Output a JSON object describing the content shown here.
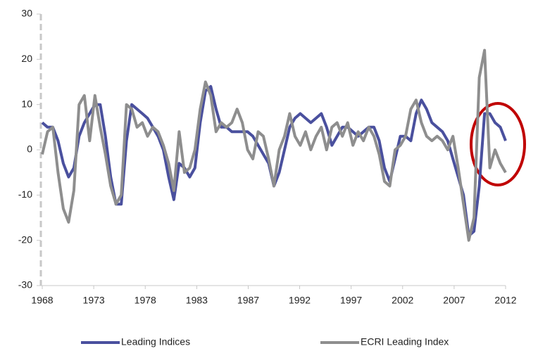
{
  "chart_data": {
    "type": "line",
    "x": [
      1968,
      1968.5,
      1969,
      1969.5,
      1970,
      1970.5,
      1971,
      1971.5,
      1972,
      1972.5,
      1973,
      1973.5,
      1974,
      1974.5,
      1975,
      1975.5,
      1976,
      1976.5,
      1977,
      1977.5,
      1978,
      1978.5,
      1979,
      1979.5,
      1980,
      1980.5,
      1981,
      1981.5,
      1982,
      1982.5,
      1983,
      1983.5,
      1984,
      1984.5,
      1985,
      1985.5,
      1986,
      1986.5,
      1987,
      1987.5,
      1988,
      1988.5,
      1989,
      1989.5,
      1990,
      1990.5,
      1991,
      1991.5,
      1992,
      1992.5,
      1993,
      1993.5,
      1994,
      1994.5,
      1995,
      1995.5,
      1996,
      1996.5,
      1997,
      1997.5,
      1998,
      1998.5,
      1999,
      1999.5,
      2000,
      2000.5,
      2001,
      2001.5,
      2002,
      2002.5,
      2003,
      2003.5,
      2004,
      2004.5,
      2005,
      2005.5,
      2006,
      2006.5,
      2007,
      2007.5,
      2008,
      2008.5,
      2009,
      2009.5,
      2010,
      2010.5,
      2011,
      2011.5,
      2012
    ],
    "series": [
      {
        "name": "Leading Indices",
        "color": "#4a509e",
        "values": [
          6,
          5,
          5,
          2,
          -3,
          -6,
          -4,
          3,
          6,
          8,
          10,
          10,
          3,
          -6,
          -12,
          -12,
          2,
          10,
          9,
          8,
          7,
          5,
          3,
          0,
          -6,
          -11,
          -3,
          -4,
          -6,
          -4,
          6,
          13,
          14,
          9,
          5,
          5,
          4,
          4,
          4,
          4,
          3,
          1,
          -1,
          -3,
          -8,
          -5,
          0,
          5,
          7,
          8,
          7,
          6,
          7,
          8,
          5,
          1,
          3,
          5,
          5,
          4,
          3,
          4,
          5,
          5,
          2,
          -4,
          -7,
          -2,
          3,
          3,
          2,
          8,
          11,
          9,
          6,
          5,
          4,
          2,
          -2,
          -6,
          -10,
          -19,
          -18,
          -8,
          8,
          8,
          6,
          5,
          2
        ]
      },
      {
        "name": "ECRI Leading Index",
        "color": "#8e8e8e",
        "values": [
          -1,
          4,
          5,
          -5,
          -13,
          -16,
          -9,
          10,
          12,
          2,
          12,
          5,
          -1,
          -8,
          -12,
          -10,
          10,
          9,
          5,
          6,
          3,
          5,
          4,
          1,
          -3,
          -9,
          4,
          -5,
          -4,
          0,
          9,
          15,
          12,
          4,
          6,
          5,
          6,
          9,
          6,
          0,
          -2,
          4,
          3,
          -2,
          -8,
          0,
          3,
          8,
          3,
          1,
          4,
          0,
          3,
          5,
          0,
          5,
          6,
          3,
          6,
          1,
          4,
          2,
          5,
          3,
          -1,
          -7,
          -8,
          0,
          1,
          3,
          9,
          11,
          6,
          3,
          2,
          3,
          2,
          0,
          3,
          -4,
          -12,
          -20,
          -15,
          16,
          22,
          -4,
          0,
          -3,
          -5
        ]
      }
    ],
    "xlim": [
      1968,
      2012
    ],
    "xticks": [
      {
        "value": 1968,
        "label": "1968"
      },
      {
        "value": 1972.89,
        "label": "1973"
      },
      {
        "value": 1977.78,
        "label": "1978"
      },
      {
        "value": 1982.67,
        "label": "1983"
      },
      {
        "value": 1987.56,
        "label": "1987"
      },
      {
        "value": 1992.44,
        "label": "1992"
      },
      {
        "value": 1997.33,
        "label": "1997"
      },
      {
        "value": 2002.22,
        "label": "2002"
      },
      {
        "value": 2007.11,
        "label": "2007"
      },
      {
        "value": 2012,
        "label": "2012"
      }
    ],
    "ylim": [
      -30,
      30
    ],
    "yticks": [
      -30,
      -20,
      -10,
      0,
      10,
      20,
      30
    ],
    "grid": false,
    "legend": "bottom"
  }
}
